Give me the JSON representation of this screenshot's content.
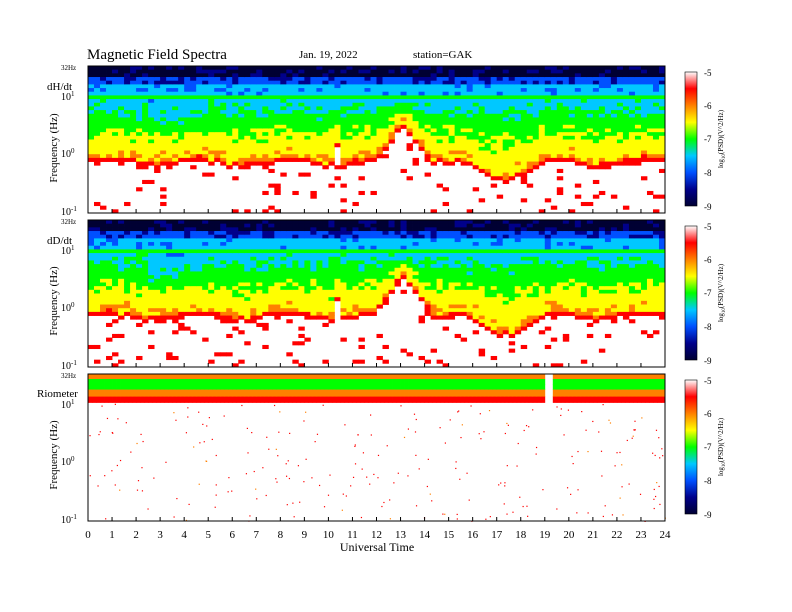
{
  "header": {
    "title": "Magnetic  Field  Spectra",
    "date": "Jan. 19, 2022",
    "station": "station=GAK"
  },
  "colors": {
    "colormap": [
      "#ffffff",
      "#ff0000",
      "#ff8000",
      "#ffff00",
      "#00ff00",
      "#00c8ff",
      "#0050ff",
      "#00008b",
      "#000033"
    ]
  },
  "chart_data": [
    {
      "type": "heatmap",
      "panel_label": "dH/dt",
      "ylabel": "Frequency (Hz)",
      "y_scale": "log",
      "ylim_hz": [
        0.1,
        32
      ],
      "yticks": [
        {
          "label": "32Hz"
        },
        {
          "label": "10",
          "exp": "1"
        },
        {
          "label": "10",
          "exp": "0"
        },
        {
          "label": "10",
          "exp": "-1"
        }
      ],
      "xlim": [
        0,
        24
      ],
      "colorbar": {
        "label": "log10(PSD) (V^2/Hz)",
        "range": [
          -9,
          -5
        ],
        "ticks": [
          "-5",
          "-6",
          "-7",
          "-8",
          "-9"
        ]
      },
      "features": {
        "noise_edge_hz": 1.0,
        "peak_time": 13.1,
        "peak_hz": 3.5
      }
    },
    {
      "type": "heatmap",
      "panel_label": "dD/dt",
      "ylabel": "Frequency (Hz)",
      "y_scale": "log",
      "ylim_hz": [
        0.1,
        32
      ],
      "yticks": [
        {
          "label": "32Hz"
        },
        {
          "label": "10",
          "exp": "1"
        },
        {
          "label": "10",
          "exp": "0"
        },
        {
          "label": "10",
          "exp": "-1"
        }
      ],
      "xlim": [
        0,
        24
      ],
      "colorbar": {
        "label": "log10(PSD) (V^2/Hz)",
        "range": [
          -9,
          -5
        ],
        "ticks": [
          "-5",
          "-6",
          "-7",
          "-8",
          "-9"
        ]
      },
      "features": {
        "noise_edge_hz": 1.0,
        "peak_time": 13.1,
        "peak_hz": 4.0
      }
    },
    {
      "type": "heatmap",
      "panel_label": "Riometer",
      "ylabel": "Frequency (Hz)",
      "y_scale": "log",
      "ylim_hz": [
        0.1,
        32
      ],
      "yticks": [
        {
          "label": "32Hz"
        },
        {
          "label": "10",
          "exp": "1"
        },
        {
          "label": "10",
          "exp": "0"
        },
        {
          "label": "10",
          "exp": "-1"
        }
      ],
      "xlim": [
        0,
        24
      ],
      "xlabel": "Universal Time",
      "xticks": [
        "0",
        "1",
        "2",
        "3",
        "4",
        "5",
        "6",
        "7",
        "8",
        "9",
        "10",
        "11",
        "12",
        "13",
        "14",
        "15",
        "16",
        "17",
        "18",
        "19",
        "20",
        "21",
        "22",
        "23",
        "24"
      ],
      "colorbar": {
        "label": "log10(PSD) (V^2/Hz)",
        "range": [
          -9,
          -5
        ],
        "ticks": [
          "-5",
          "-6",
          "-7",
          "-8",
          "-9"
        ]
      },
      "features": {
        "gap_start": 19.0,
        "gap_end": 19.4
      }
    }
  ]
}
